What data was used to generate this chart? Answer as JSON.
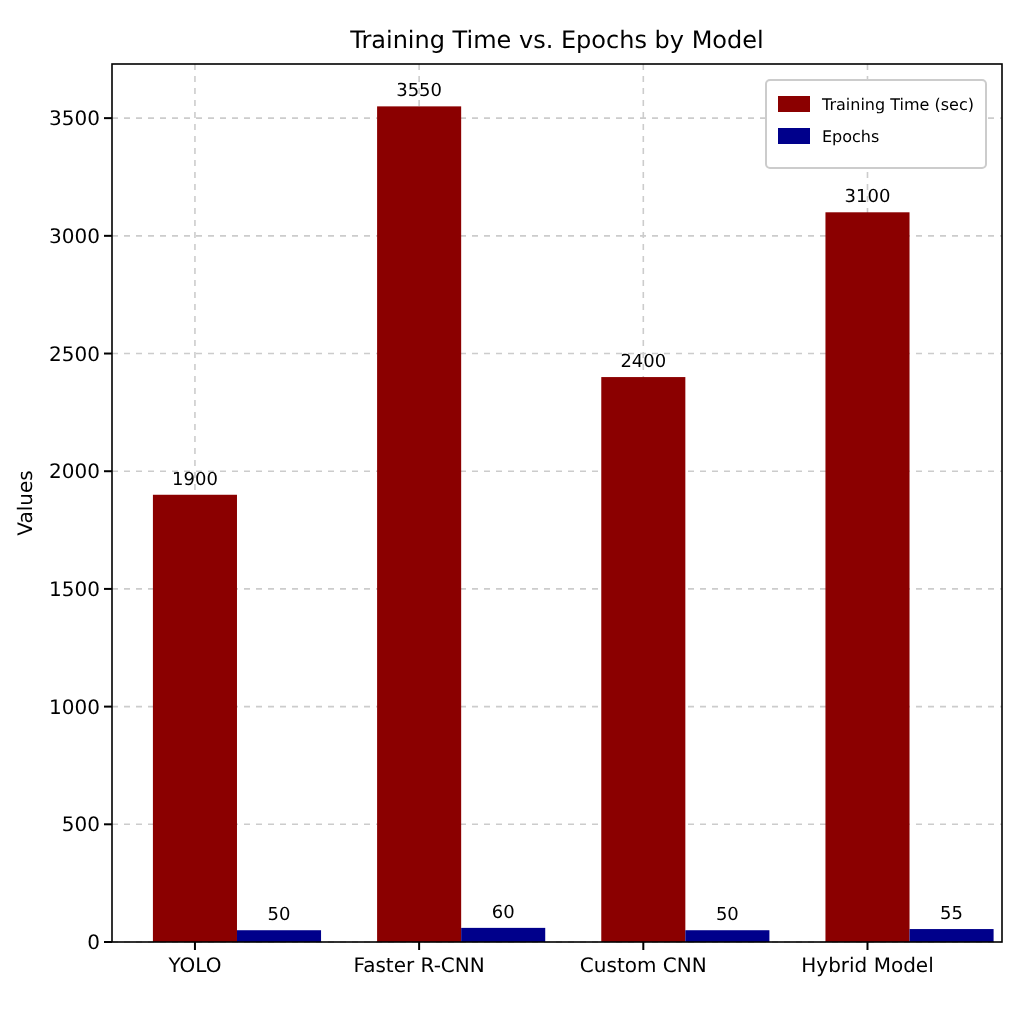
{
  "chart_data": {
    "type": "bar",
    "title": "Training Time vs. Epochs by Model",
    "ylabel": "Values",
    "categories": [
      "YOLO",
      "Faster R-CNN",
      "Custom CNN",
      "Hybrid Model"
    ],
    "series": [
      {
        "name": "Training Time (sec)",
        "color": "#8b0000",
        "values": [
          1900,
          3550,
          2400,
          3100
        ]
      },
      {
        "name": "Epochs",
        "color": "#00008b",
        "values": [
          50,
          60,
          50,
          55
        ]
      }
    ],
    "ylim": [
      0,
      3730
    ],
    "yticks": [
      0,
      500,
      1000,
      1500,
      2000,
      2500,
      3000,
      3500
    ],
    "grid": true,
    "legend": "top right",
    "data_labels": true
  }
}
